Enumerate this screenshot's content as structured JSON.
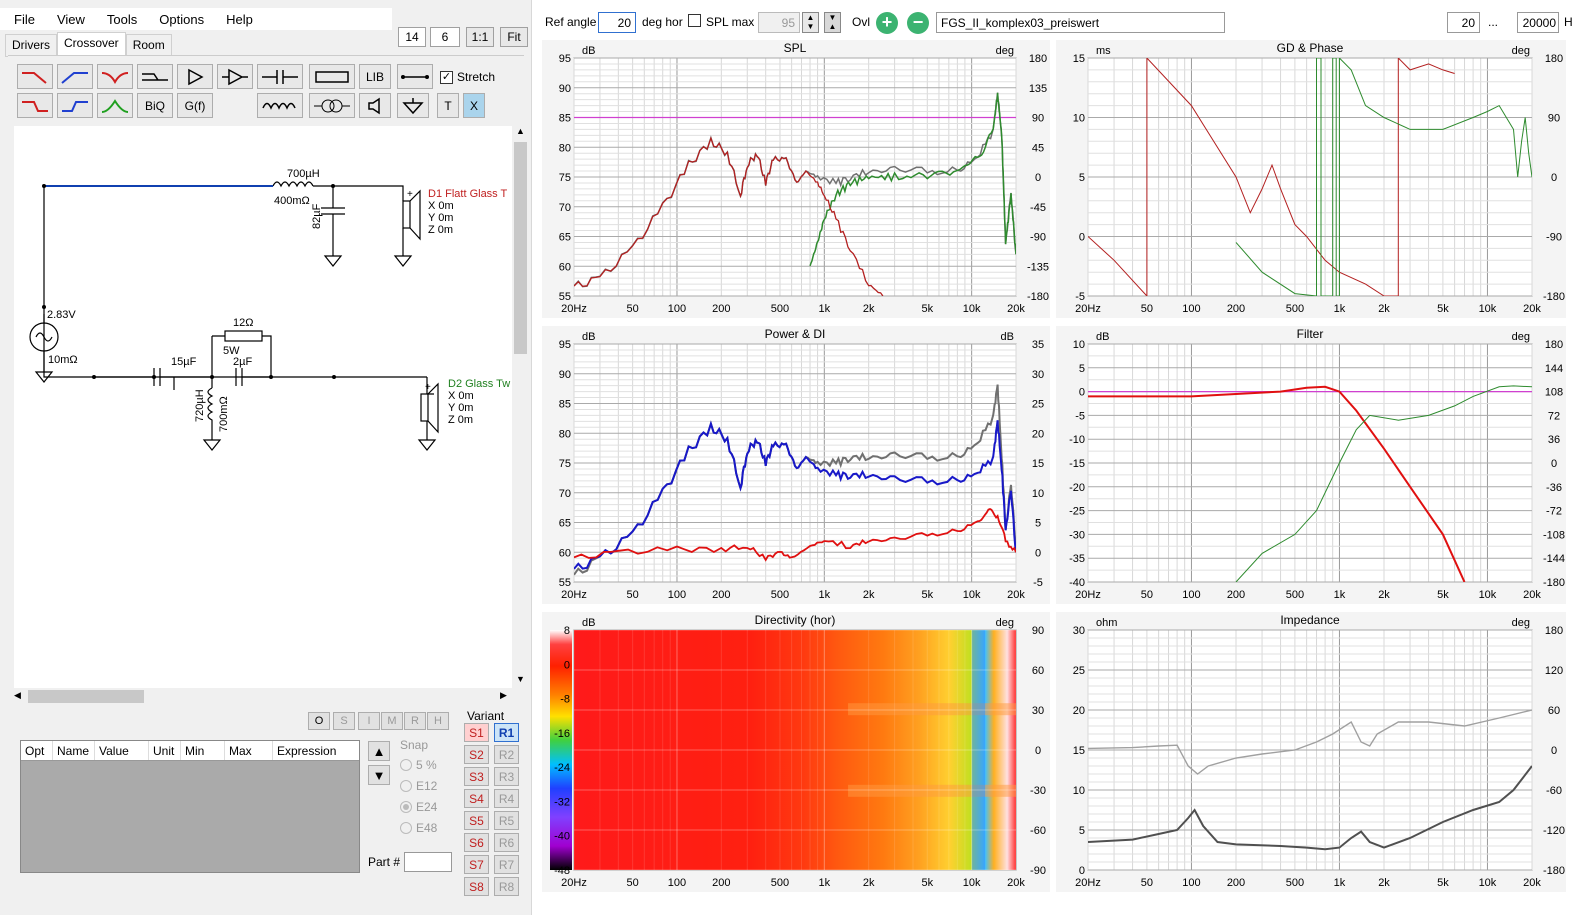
{
  "menu": [
    "File",
    "View",
    "Tools",
    "Options",
    "Help"
  ],
  "topnums": {
    "a": "14",
    "b": "6",
    "c": "1:1",
    "d": "Fit"
  },
  "tabs": [
    "Drivers",
    "Crossover",
    "Room"
  ],
  "toolbar": {
    "lib": "LIB",
    "stretch": "Stretch",
    "biq": "BiQ",
    "gf": "G(f)",
    "t": "T",
    "x": "X"
  },
  "schematic": {
    "l1": "700µH",
    "r1": "400mΩ",
    "c1": "82µF",
    "d1": "D1 Flatt Glass T",
    "d1x": "X 0m",
    "d1y": "Y 0m",
    "d1z": "Z 0m",
    "src_v": "2.83V",
    "src_r": "10mΩ",
    "r2": "12Ω",
    "r2w": "5W",
    "c2": "15µF",
    "c3": "2µF",
    "l2": "720µH",
    "r3": "700mΩ",
    "d2": "D2 Glass Tw",
    "d2x": "X 0m",
    "d2y": "Y 0m",
    "d2z": "Z 0m"
  },
  "small_buttons": [
    "O",
    "S",
    "I",
    "M",
    "R",
    "H"
  ],
  "grid_cols": [
    "Opt",
    "Name",
    "Value",
    "Unit",
    "Min",
    "Max",
    "Expression"
  ],
  "snap": {
    "title": "Snap",
    "opts": [
      "5 %",
      "E12",
      "E24",
      "E48"
    ],
    "selected": "E24"
  },
  "part": "Part #",
  "variant": {
    "title": "Variant",
    "s": [
      "S1",
      "S2",
      "S3",
      "S4",
      "S5",
      "S6",
      "S7",
      "S8"
    ],
    "r": [
      "R1",
      "R2",
      "R3",
      "R4",
      "R5",
      "R6",
      "R7",
      "R8"
    ]
  },
  "topbar": {
    "ref_angle_label": "Ref angle",
    "ref_angle": "20",
    "deg_hor": "deg hor",
    "splmax_label": "SPL max",
    "splmax": "95",
    "ovl": "Ovl",
    "filename": "FGS_II_komplex03_preiswert",
    "f_from": "20",
    "dots": "...",
    "f_to": "20000",
    "hz": "Hz"
  },
  "xticks": [
    "20Hz",
    "50",
    "100",
    "200",
    "500",
    "1k",
    "2k",
    "5k",
    "10k",
    "20k"
  ],
  "charts": {
    "spl": {
      "title": "SPL",
      "lunit": "dB",
      "runit": "deg",
      "left": [
        "95",
        "90",
        "85",
        "80",
        "75",
        "70",
        "65",
        "60",
        "55"
      ],
      "right": [
        "180",
        "135",
        "90",
        "45",
        "0",
        "-45",
        "-90",
        "-135",
        "-180"
      ]
    },
    "gd": {
      "title": "GD & Phase",
      "lunit": "ms",
      "runit": "deg",
      "left": [
        "15",
        "10",
        "5",
        "0",
        "-5"
      ],
      "right": [
        "180",
        "90",
        "0",
        "-90",
        "-180"
      ]
    },
    "power": {
      "title": "Power & DI",
      "lunit": "dB",
      "runit": "dB",
      "left": [
        "95",
        "90",
        "85",
        "80",
        "75",
        "70",
        "65",
        "60",
        "55"
      ],
      "right": [
        "35",
        "30",
        "25",
        "20",
        "15",
        "10",
        "5",
        "0",
        "-5"
      ]
    },
    "filter": {
      "title": "Filter",
      "lunit": "dB",
      "runit": "deg",
      "left": [
        "10",
        "5",
        "0",
        "-5",
        "-10",
        "-15",
        "-20",
        "-25",
        "-30",
        "-35",
        "-40"
      ],
      "right": [
        "180",
        "144",
        "108",
        "72",
        "36",
        "0",
        "-36",
        "-72",
        "-108",
        "-144",
        "-180"
      ]
    },
    "dir": {
      "title": "Directivity (hor)",
      "lunit": "dB",
      "runit": "deg",
      "scale": [
        "8",
        "0",
        "-8",
        "-16",
        "-24",
        "-32",
        "-40",
        "-48"
      ],
      "right": [
        "90",
        "60",
        "30",
        "0",
        "-30",
        "-60",
        "-90"
      ]
    },
    "imp": {
      "title": "Impedance",
      "lunit": "ohm",
      "runit": "deg",
      "left": [
        "30",
        "25",
        "20",
        "15",
        "10",
        "5",
        "0"
      ],
      "right": [
        "180",
        "120",
        "60",
        "0",
        "-60",
        "-120",
        "-180"
      ]
    }
  },
  "colors": {
    "red": "#b32020",
    "green": "#2e8b2e",
    "blue": "#1818c8",
    "grey": "#707070",
    "magenta": "#d040d0"
  }
}
